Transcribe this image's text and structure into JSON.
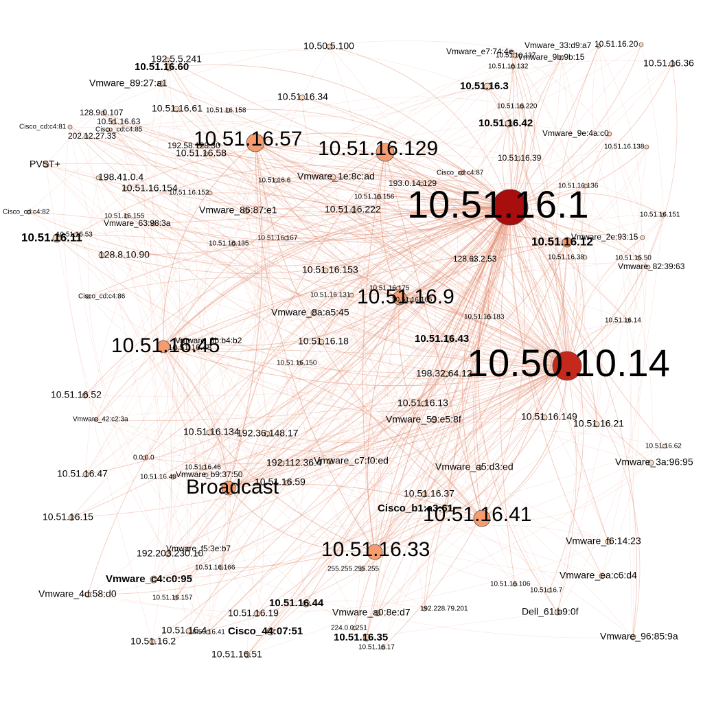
{
  "colors": {
    "background": "#ffffff",
    "edge": "#e28a6c",
    "node_stroke": "#4d4d4d",
    "node_light": "#fbd8bd",
    "node_medium": "#f79c6e",
    "node_dark": "#c4291b",
    "node_darkest": "#a80e0e"
  },
  "nodes": [
    {
      "id": "n1",
      "label": "10.51.16.1",
      "degree": 100,
      "tier": "darkest",
      "labelSize": "xl"
    },
    {
      "id": "n2",
      "label": "10.50.10.14",
      "degree": 80,
      "tier": "dark",
      "labelSize": "xl"
    },
    {
      "id": "n3",
      "label": "10.51.16.57",
      "degree": 30,
      "tier": "medium",
      "labelSize": "l"
    },
    {
      "id": "n4",
      "label": "10.51.16.129",
      "degree": 30,
      "tier": "medium",
      "labelSize": "l"
    },
    {
      "id": "n5",
      "label": "10.51.16.9",
      "degree": 18,
      "tier": "medium",
      "labelSize": "l"
    },
    {
      "id": "n6",
      "label": "10.51.16.45",
      "degree": 18,
      "tier": "medium",
      "labelSize": "l"
    },
    {
      "id": "n7",
      "label": "10.51.16.41",
      "degree": 28,
      "tier": "medium",
      "labelSize": "l"
    },
    {
      "id": "n8",
      "label": "10.51.16.33",
      "degree": 22,
      "tier": "medium",
      "labelSize": "l"
    },
    {
      "id": "n9",
      "label": "Broadcast",
      "degree": 16,
      "tier": "medium",
      "labelSize": "l"
    },
    {
      "id": "n10",
      "label": "10.51.16.12",
      "degree": 10,
      "tier": "medium",
      "labelSize": "mb"
    },
    {
      "id": "n11",
      "label": "10.51.16.11",
      "degree": 6,
      "tier": "light",
      "labelSize": "mb"
    },
    {
      "id": "n12",
      "label": "10.51.16.60",
      "degree": 4,
      "tier": "light",
      "labelSize": "sb"
    },
    {
      "id": "n13",
      "label": "10.51.16.3",
      "degree": 5,
      "tier": "light",
      "labelSize": "sb"
    },
    {
      "id": "n14",
      "label": "10.51.16.42",
      "degree": 5,
      "tier": "light",
      "labelSize": "sb"
    },
    {
      "id": "n15",
      "label": "10.51.16.43",
      "degree": 5,
      "tier": "light",
      "labelSize": "sb"
    },
    {
      "id": "n16",
      "label": "Cisco_b1:a3:61",
      "degree": 5,
      "tier": "light",
      "labelSize": "sb"
    },
    {
      "id": "n17",
      "label": "Vmware_c4:c0:95",
      "degree": 5,
      "tier": "light",
      "labelSize": "sb"
    },
    {
      "id": "n18",
      "label": "10.51.16.44",
      "degree": 5,
      "tier": "light",
      "labelSize": "sb"
    },
    {
      "id": "n19",
      "label": "Cisco_44:07:51",
      "degree": 5,
      "tier": "light",
      "labelSize": "sb"
    },
    {
      "id": "n20",
      "label": "10.51.16.35",
      "degree": 5,
      "tier": "light",
      "labelSize": "sb"
    },
    {
      "id": "n21",
      "label": "10.50.5.100",
      "degree": 2,
      "tier": "light",
      "labelSize": "m"
    },
    {
      "id": "n22",
      "label": "10.51.16.34",
      "degree": 2,
      "tier": "light",
      "labelSize": "m"
    },
    {
      "id": "n23",
      "label": "10.51.16.61",
      "degree": 2,
      "tier": "light",
      "labelSize": "m"
    },
    {
      "id": "n24",
      "label": "Vmware_89:27:a1",
      "degree": 2,
      "tier": "light",
      "labelSize": "m"
    },
    {
      "id": "n25",
      "label": "192.5.5.241",
      "degree": 2,
      "tier": "light",
      "labelSize": "m"
    },
    {
      "id": "n26",
      "label": "PVST+",
      "degree": 2,
      "tier": "light",
      "labelSize": "m"
    },
    {
      "id": "n27",
      "label": "198.41.0.4",
      "degree": 2,
      "tier": "light",
      "labelSize": "m"
    },
    {
      "id": "n28",
      "label": "10.51.16.154",
      "degree": 2,
      "tier": "light",
      "labelSize": "m"
    },
    {
      "id": "n29",
      "label": "10.51.16.58",
      "degree": 2,
      "tier": "light",
      "labelSize": "m"
    },
    {
      "id": "n30",
      "label": "Vmware_86:87:e1",
      "degree": 2,
      "tier": "light",
      "labelSize": "m"
    },
    {
      "id": "n31",
      "label": "10.51.16.222",
      "degree": 2,
      "tier": "light",
      "labelSize": "m"
    },
    {
      "id": "n32",
      "label": "Vmware_1e:8c:ad",
      "degree": 2,
      "tier": "light",
      "labelSize": "m"
    },
    {
      "id": "n33",
      "label": "128.8.10.90",
      "degree": 2,
      "tier": "light",
      "labelSize": "m"
    },
    {
      "id": "n34",
      "label": "10.51.16.153",
      "degree": 2,
      "tier": "light",
      "labelSize": "m"
    },
    {
      "id": "n35",
      "label": "Vmware_8a:a5:45",
      "degree": 2,
      "tier": "light",
      "labelSize": "m"
    },
    {
      "id": "n36",
      "label": "10.51.16.18",
      "degree": 2,
      "tier": "light",
      "labelSize": "m"
    },
    {
      "id": "n37",
      "label": "10.51.16.52",
      "degree": 2,
      "tier": "light",
      "labelSize": "m"
    },
    {
      "id": "n38",
      "label": "198.32.64.12",
      "degree": 2,
      "tier": "light",
      "labelSize": "m"
    },
    {
      "id": "n39",
      "label": "10.51.16.13",
      "degree": 2,
      "tier": "light",
      "labelSize": "m"
    },
    {
      "id": "n40",
      "label": "Vmware_59:e5:8f",
      "degree": 2,
      "tier": "light",
      "labelSize": "m"
    },
    {
      "id": "n41",
      "label": "10.51.16.134",
      "degree": 2,
      "tier": "light",
      "labelSize": "m"
    },
    {
      "id": "n42",
      "label": "192.36.148.17",
      "degree": 2,
      "tier": "light",
      "labelSize": "m"
    },
    {
      "id": "n43",
      "label": "192.112.36.4",
      "degree": 2,
      "tier": "light",
      "labelSize": "m"
    },
    {
      "id": "n44",
      "label": "Vmware_c7:f0:ed",
      "degree": 2,
      "tier": "light",
      "labelSize": "m"
    },
    {
      "id": "n45",
      "label": "10.51.16.59",
      "degree": 2,
      "tier": "light",
      "labelSize": "m"
    },
    {
      "id": "n46",
      "label": "10.51.16.47",
      "degree": 2,
      "tier": "light",
      "labelSize": "m"
    },
    {
      "id": "n47",
      "label": "10.51.16.15",
      "degree": 2,
      "tier": "light",
      "labelSize": "m"
    },
    {
      "id": "n48",
      "label": "10.51.16.37",
      "degree": 2,
      "tier": "light",
      "labelSize": "m"
    },
    {
      "id": "n49",
      "label": "Vmware_a5:d3:ed",
      "degree": 2,
      "tier": "light",
      "labelSize": "m"
    },
    {
      "id": "n50",
      "label": "10.51.16.149",
      "degree": 2,
      "tier": "light",
      "labelSize": "m"
    },
    {
      "id": "n51",
      "label": "10.51.16.21",
      "degree": 2,
      "tier": "light",
      "labelSize": "m"
    },
    {
      "id": "n52",
      "label": "Vmware_3a:96:95",
      "degree": 2,
      "tier": "light",
      "labelSize": "m"
    },
    {
      "id": "n53",
      "label": "Vmware_f6:14:23",
      "degree": 2,
      "tier": "light",
      "labelSize": "m"
    },
    {
      "id": "n54",
      "label": "Vmware_ea:c6:d4",
      "degree": 2,
      "tier": "light",
      "labelSize": "m"
    },
    {
      "id": "n55",
      "label": "Dell_61:b9:0f",
      "degree": 2,
      "tier": "light",
      "labelSize": "m"
    },
    {
      "id": "n56",
      "label": "Vmware_96:85:9a",
      "degree": 2,
      "tier": "light",
      "labelSize": "m"
    },
    {
      "id": "n57",
      "label": "Vmware_a0:8e:d7",
      "degree": 2,
      "tier": "light",
      "labelSize": "m"
    },
    {
      "id": "n58",
      "label": "10.51.16.51",
      "degree": 2,
      "tier": "light",
      "labelSize": "m"
    },
    {
      "id": "n59",
      "label": "10.51.16.2",
      "degree": 2,
      "tier": "light",
      "labelSize": "m"
    },
    {
      "id": "n60",
      "label": "10.51.16.4",
      "degree": 2,
      "tier": "light",
      "labelSize": "m"
    },
    {
      "id": "n61",
      "label": "10.51.16.19",
      "degree": 2,
      "tier": "light",
      "labelSize": "m"
    },
    {
      "id": "n62",
      "label": "Vmware_4d:58:d0",
      "degree": 2,
      "tier": "light",
      "labelSize": "m"
    },
    {
      "id": "n63",
      "label": "192.203.230.10",
      "degree": 2,
      "tier": "light",
      "labelSize": "m"
    },
    {
      "id": "n64",
      "label": "Vmware_f5:3e:b7",
      "degree": 2,
      "tier": "light",
      "labelSize": "s"
    },
    {
      "id": "n65",
      "label": "10.51.16.39",
      "degree": 2,
      "tier": "light",
      "labelSize": "s"
    },
    {
      "id": "n66",
      "label": "Vmware_9e:4a:c0",
      "degree": 2,
      "tier": "light",
      "labelSize": "s"
    },
    {
      "id": "n67",
      "label": "10.51.16.36",
      "degree": 2,
      "tier": "light",
      "labelSize": "m"
    },
    {
      "id": "n68",
      "label": "Vmware_33:d9:a7",
      "degree": 2,
      "tier": "light",
      "labelSize": "s"
    },
    {
      "id": "n69",
      "label": "10.51.16.20",
      "degree": 2,
      "tier": "light",
      "labelSize": "s"
    },
    {
      "id": "n70",
      "label": "Vmware_9b:9b:15",
      "degree": 2,
      "tier": "light",
      "labelSize": "s"
    },
    {
      "id": "n71",
      "label": "Vmware_e7:74:4e",
      "degree": 2,
      "tier": "light",
      "labelSize": "s"
    },
    {
      "id": "n72",
      "label": "10.51.16.137",
      "degree": 2,
      "tier": "light",
      "labelSize": "xs"
    },
    {
      "id": "n73",
      "label": "10.51.16.132",
      "degree": 2,
      "tier": "light",
      "labelSize": "xs"
    },
    {
      "id": "n74",
      "label": "10.51.16.220",
      "degree": 2,
      "tier": "light",
      "labelSize": "xs"
    },
    {
      "id": "n75",
      "label": "10.51.16.138",
      "degree": 2,
      "tier": "light",
      "labelSize": "xs"
    },
    {
      "id": "n76",
      "label": "10.51.16.136",
      "degree": 2,
      "tier": "light",
      "labelSize": "xs"
    },
    {
      "id": "n77",
      "label": "10.51.16.151",
      "degree": 2,
      "tier": "light",
      "labelSize": "xs"
    },
    {
      "id": "n78",
      "label": "Vmware_2e:93:15",
      "degree": 2,
      "tier": "light",
      "labelSize": "s"
    },
    {
      "id": "n79",
      "label": "10.51.16.38",
      "degree": 2,
      "tier": "light",
      "labelSize": "xs"
    },
    {
      "id": "n80",
      "label": "10.51.16.50",
      "degree": 2,
      "tier": "light",
      "labelSize": "xs"
    },
    {
      "id": "n81",
      "label": "Vmware_82:39:63",
      "degree": 2,
      "tier": "light",
      "labelSize": "s"
    },
    {
      "id": "n82",
      "label": "10.51.16.14",
      "degree": 2,
      "tier": "light",
      "labelSize": "xs"
    },
    {
      "id": "n83",
      "label": "128.63.2.53",
      "degree": 2,
      "tier": "light",
      "labelSize": "s"
    },
    {
      "id": "n84",
      "label": "10.51.16.183",
      "degree": 2,
      "tier": "light",
      "labelSize": "xs"
    },
    {
      "id": "n85",
      "label": "10.51.16.175",
      "degree": 2,
      "tier": "light",
      "labelSize": "xs"
    },
    {
      "id": "n86",
      "label": "10.51.16.165",
      "degree": 2,
      "tier": "light",
      "labelSize": "xs"
    },
    {
      "id": "n87",
      "label": "10.51.16.131",
      "degree": 2,
      "tier": "light",
      "labelSize": "xs"
    },
    {
      "id": "n88",
      "label": "10.51.16.156",
      "degree": 2,
      "tier": "light",
      "labelSize": "xs"
    },
    {
      "id": "n89",
      "label": "193.0.14.129",
      "degree": 2,
      "tier": "light",
      "labelSize": "s"
    },
    {
      "id": "n90",
      "label": "Cisco_cd:c4:87",
      "degree": 2,
      "tier": "light",
      "labelSize": "xs"
    },
    {
      "id": "n91",
      "label": "10.51.16.6",
      "degree": 2,
      "tier": "light",
      "labelSize": "xs"
    },
    {
      "id": "n92",
      "label": "10.51.16.152",
      "degree": 2,
      "tier": "light",
      "labelSize": "xs"
    },
    {
      "id": "n93",
      "label": "10.51.16.158",
      "degree": 2,
      "tier": "light",
      "labelSize": "xs"
    },
    {
      "id": "n94",
      "label": "192.58.128.30",
      "degree": 2,
      "tier": "light",
      "labelSize": "s"
    },
    {
      "id": "n95",
      "label": "128.9.0.107",
      "degree": 2,
      "tier": "light",
      "labelSize": "s"
    },
    {
      "id": "n96",
      "label": "10.51.16.63",
      "degree": 2,
      "tier": "light",
      "labelSize": "s"
    },
    {
      "id": "n97",
      "label": "Cisco_cd:c4:81",
      "degree": 2,
      "tier": "light",
      "labelSize": "xs"
    },
    {
      "id": "n98",
      "label": "202.12.27.33",
      "degree": 2,
      "tier": "light",
      "labelSize": "s"
    },
    {
      "id": "n99",
      "label": "Cisco_cd:c4:85",
      "degree": 2,
      "tier": "light",
      "labelSize": "xs"
    },
    {
      "id": "n100",
      "label": "Cisco_cd:c4:82",
      "degree": 2,
      "tier": "light",
      "labelSize": "xs"
    },
    {
      "id": "n101",
      "label": "10.51.16.155",
      "degree": 2,
      "tier": "light",
      "labelSize": "xs"
    },
    {
      "id": "n102",
      "label": "Vmware_63:98:3a",
      "degree": 2,
      "tier": "light",
      "labelSize": "s"
    },
    {
      "id": "n103",
      "label": "10.51.16.53",
      "degree": 2,
      "tier": "light",
      "labelSize": "xs"
    },
    {
      "id": "n104",
      "label": "10.51.16.135",
      "degree": 2,
      "tier": "light",
      "labelSize": "xs"
    },
    {
      "id": "n105",
      "label": "10.51.16.167",
      "degree": 2,
      "tier": "light",
      "labelSize": "xs"
    },
    {
      "id": "n106",
      "label": "Cisco_cd:c4:86",
      "degree": 2,
      "tier": "light",
      "labelSize": "xs"
    },
    {
      "id": "n107",
      "label": "Vmware_6b:b4:b2",
      "degree": 2,
      "tier": "light",
      "labelSize": "s"
    },
    {
      "id": "n108",
      "label": "10.51.16.48",
      "degree": 2,
      "tier": "light",
      "labelSize": "s"
    },
    {
      "id": "n109",
      "label": "10.51.16.150",
      "degree": 2,
      "tier": "light",
      "labelSize": "xs"
    },
    {
      "id": "n110",
      "label": "Vmware_42:c2:3a",
      "degree": 2,
      "tier": "light",
      "labelSize": "xs"
    },
    {
      "id": "n111",
      "label": "0.0.0.0",
      "degree": 2,
      "tier": "light",
      "labelSize": "xs"
    },
    {
      "id": "n112",
      "label": "10.51.16.46",
      "degree": 2,
      "tier": "light",
      "labelSize": "xs"
    },
    {
      "id": "n113",
      "label": "10.51.16.40",
      "degree": 2,
      "tier": "light",
      "labelSize": "xs"
    },
    {
      "id": "n114",
      "label": "Vmware_b9:37:50",
      "degree": 2,
      "tier": "light",
      "labelSize": "s"
    },
    {
      "id": "n115",
      "label": "10.51.16.166",
      "degree": 2,
      "tier": "light",
      "labelSize": "xs"
    },
    {
      "id": "n116",
      "label": "10.51.16.157",
      "degree": 2,
      "tier": "light",
      "labelSize": "xs"
    },
    {
      "id": "n117",
      "label": "10.50.16.41",
      "degree": 2,
      "tier": "light",
      "labelSize": "xs"
    },
    {
      "id": "n118",
      "label": "224.0.0.251",
      "degree": 2,
      "tier": "light",
      "labelSize": "xs"
    },
    {
      "id": "n119",
      "label": "10.51.16.17",
      "degree": 2,
      "tier": "light",
      "labelSize": "xs"
    },
    {
      "id": "n120",
      "label": "192.228.79.201",
      "degree": 2,
      "tier": "light",
      "labelSize": "xs"
    },
    {
      "id": "n121",
      "label": "255.255.255.255",
      "degree": 2,
      "tier": "light",
      "labelSize": "xs"
    },
    {
      "id": "n122",
      "label": "10.51.16.106",
      "degree": 2,
      "tier": "light",
      "labelSize": "xs"
    },
    {
      "id": "n123",
      "label": "10.51.16.7",
      "degree": 2,
      "tier": "light",
      "labelSize": "xs"
    },
    {
      "id": "n124",
      "label": "10.51.16.62",
      "degree": 2,
      "tier": "light",
      "labelSize": "xs"
    }
  ]
}
